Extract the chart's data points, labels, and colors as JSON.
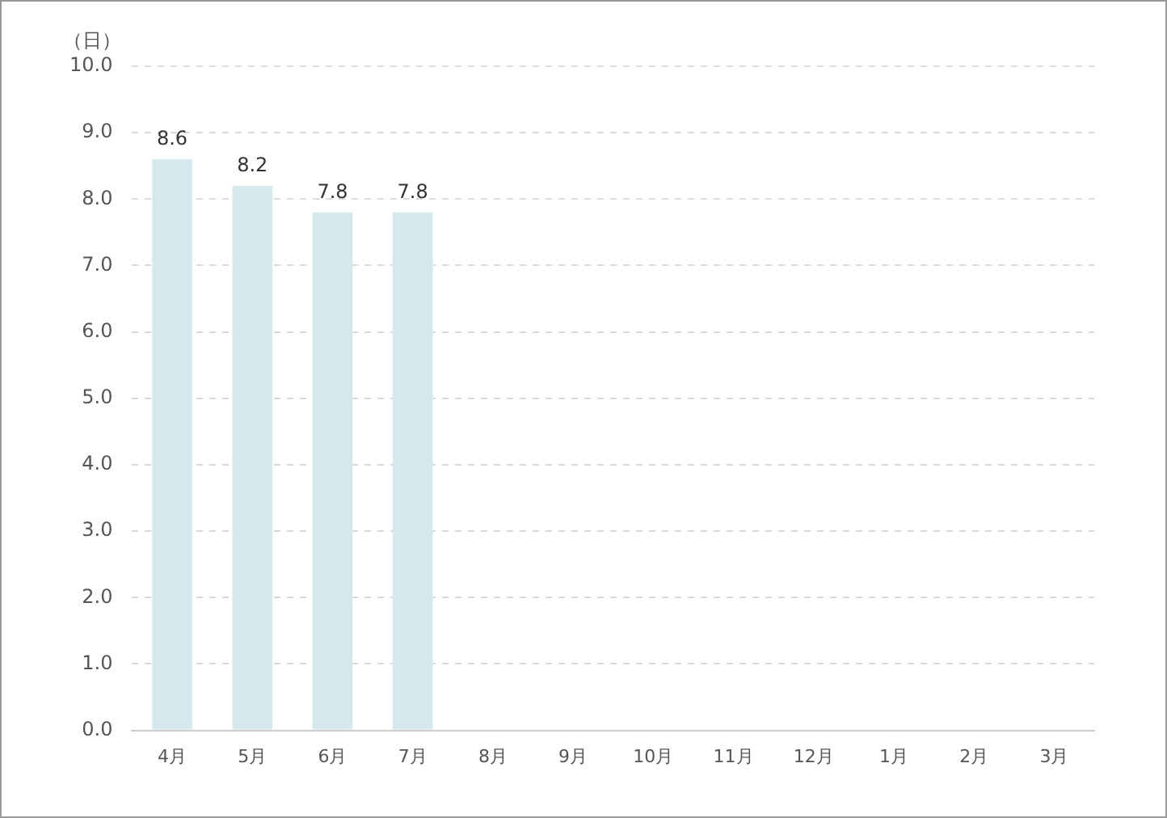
{
  "chart_data": {
    "type": "bar",
    "ylabel": "（日）",
    "categories": [
      "4月",
      "5月",
      "6月",
      "7月",
      "8月",
      "9月",
      "10月",
      "11月",
      "12月",
      "1月",
      "2月",
      "3月"
    ],
    "values": [
      8.6,
      8.2,
      7.8,
      7.8,
      null,
      null,
      null,
      null,
      null,
      null,
      null,
      null
    ],
    "color": "#d5e9ec",
    "ylim": [
      0,
      10
    ],
    "yticks": [
      {
        "value": 0,
        "label": "0.0"
      },
      {
        "value": 1,
        "label": "1.0"
      },
      {
        "value": 2,
        "label": "2.0"
      },
      {
        "value": 3,
        "label": "3.0"
      },
      {
        "value": 4,
        "label": "4.0"
      },
      {
        "value": 5,
        "label": "5.0"
      },
      {
        "value": 6,
        "label": "6.0"
      },
      {
        "value": 7,
        "label": "7.0"
      },
      {
        "value": 8,
        "label": "8.0"
      },
      {
        "value": 9,
        "label": "9.0"
      },
      {
        "value": 10,
        "label": "10.0"
      }
    ],
    "grid": "y",
    "legend": false,
    "data_labels": true
  }
}
